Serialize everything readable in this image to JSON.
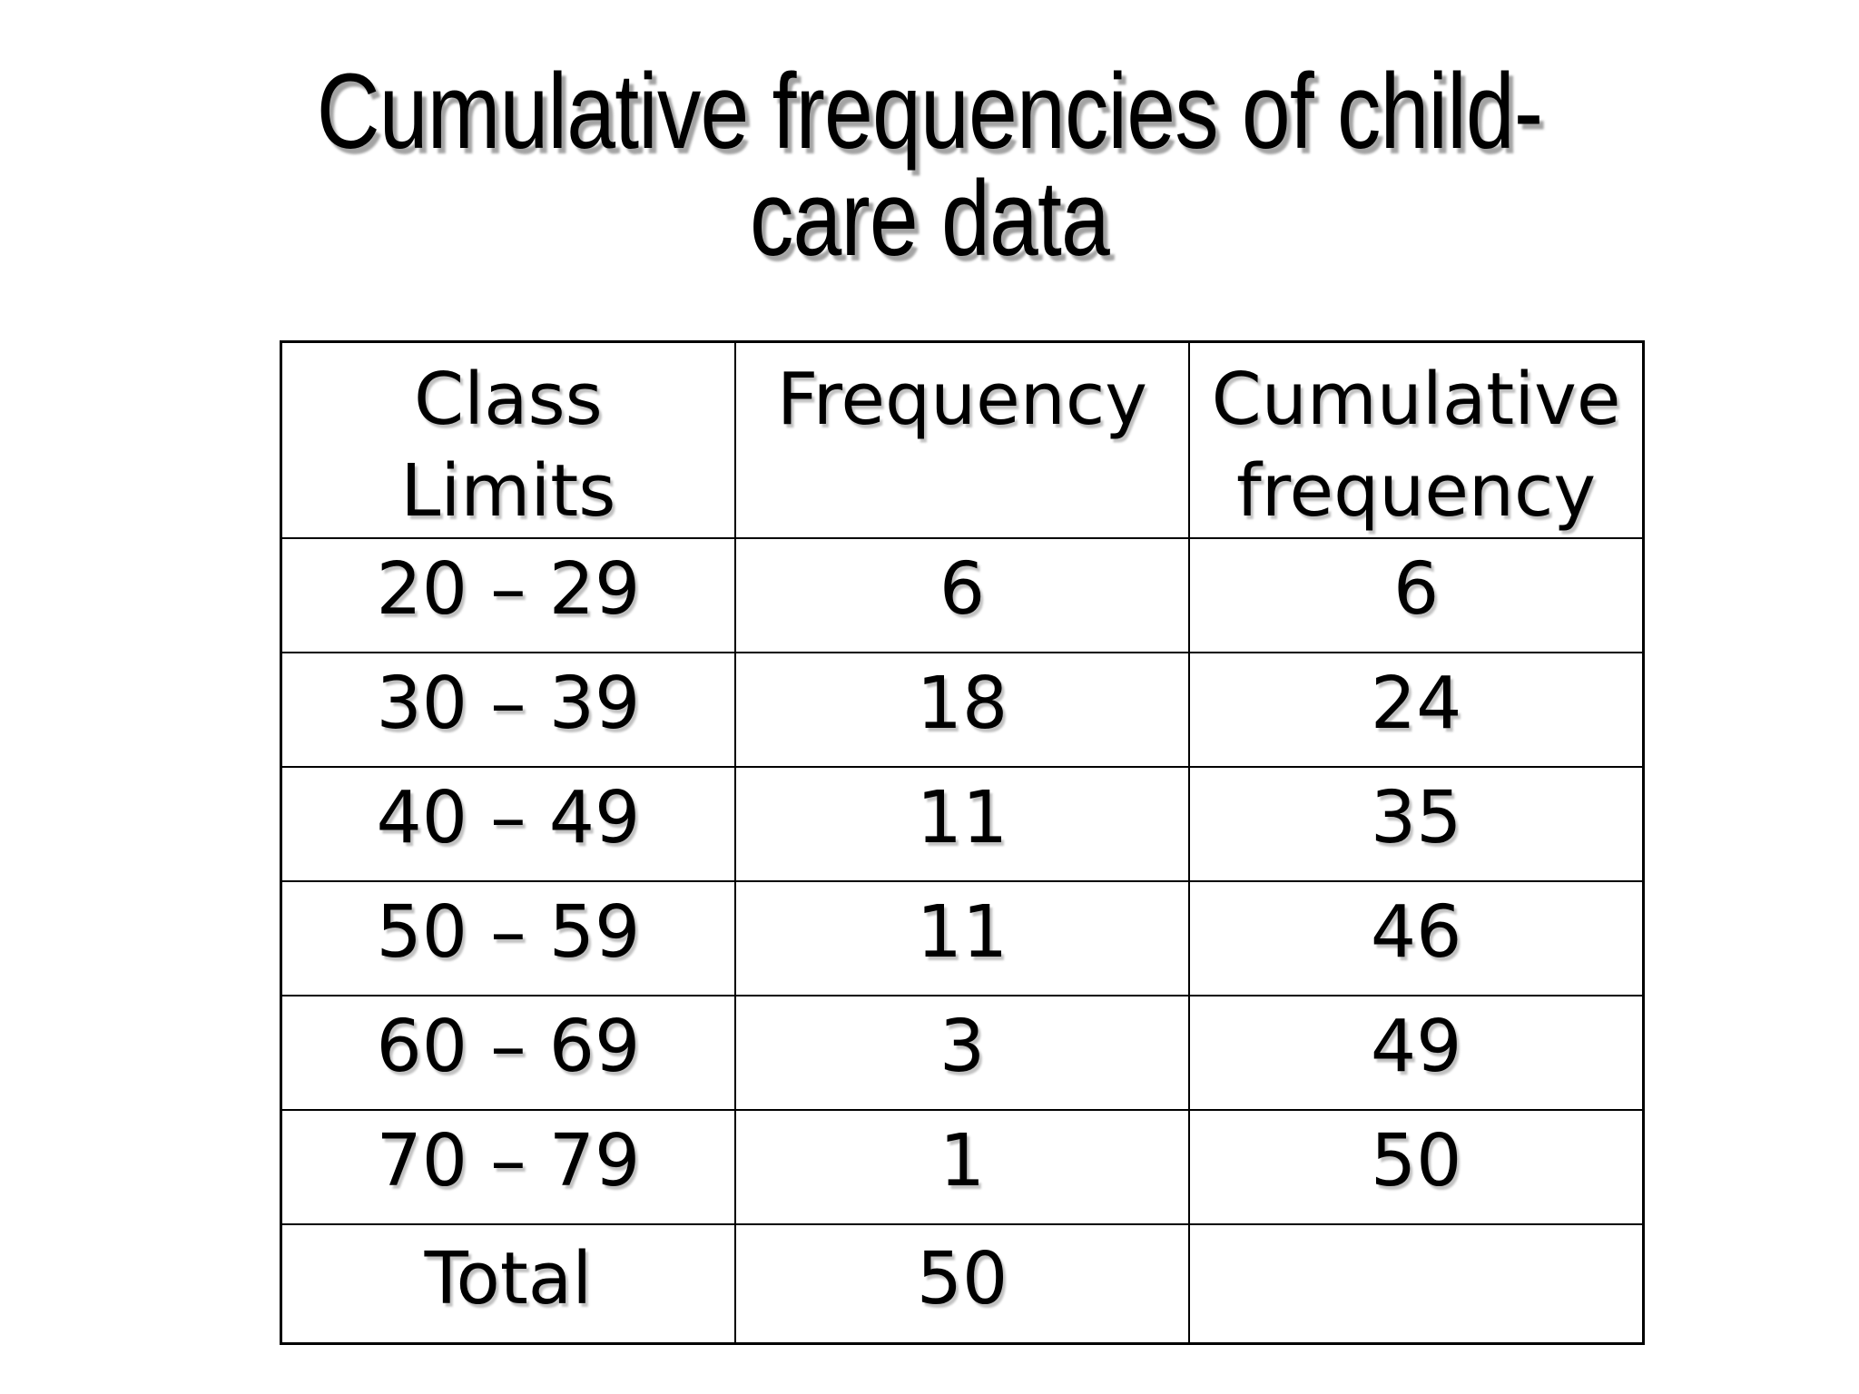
{
  "slide": {
    "title": {
      "full": "Cumulative frequencies of child-care data",
      "line1": "Cumulative frequencies of child-",
      "line2": "care data"
    },
    "table": {
      "headers": {
        "class_limits": "Class\nLimits",
        "frequency": "Frequency",
        "cumulative_frequency": "Cumulative\nfrequency"
      },
      "rows": [
        {
          "class_limits": "20 – 29",
          "frequency": "6",
          "cumulative_frequency": "6"
        },
        {
          "class_limits": "30 – 39",
          "frequency": "18",
          "cumulative_frequency": "24"
        },
        {
          "class_limits": "40 – 49",
          "frequency": "11",
          "cumulative_frequency": "35"
        },
        {
          "class_limits": "50 – 59",
          "frequency": "11",
          "cumulative_frequency": "46"
        },
        {
          "class_limits": "60 – 69",
          "frequency": "3",
          "cumulative_frequency": "49"
        },
        {
          "class_limits": "70 – 79",
          "frequency": "1",
          "cumulative_frequency": "50"
        },
        {
          "class_limits": "Total",
          "frequency": "50",
          "cumulative_frequency": ""
        }
      ]
    },
    "colors": {
      "background": "#ffffff",
      "text": "#000000",
      "border": "#000000"
    }
  }
}
